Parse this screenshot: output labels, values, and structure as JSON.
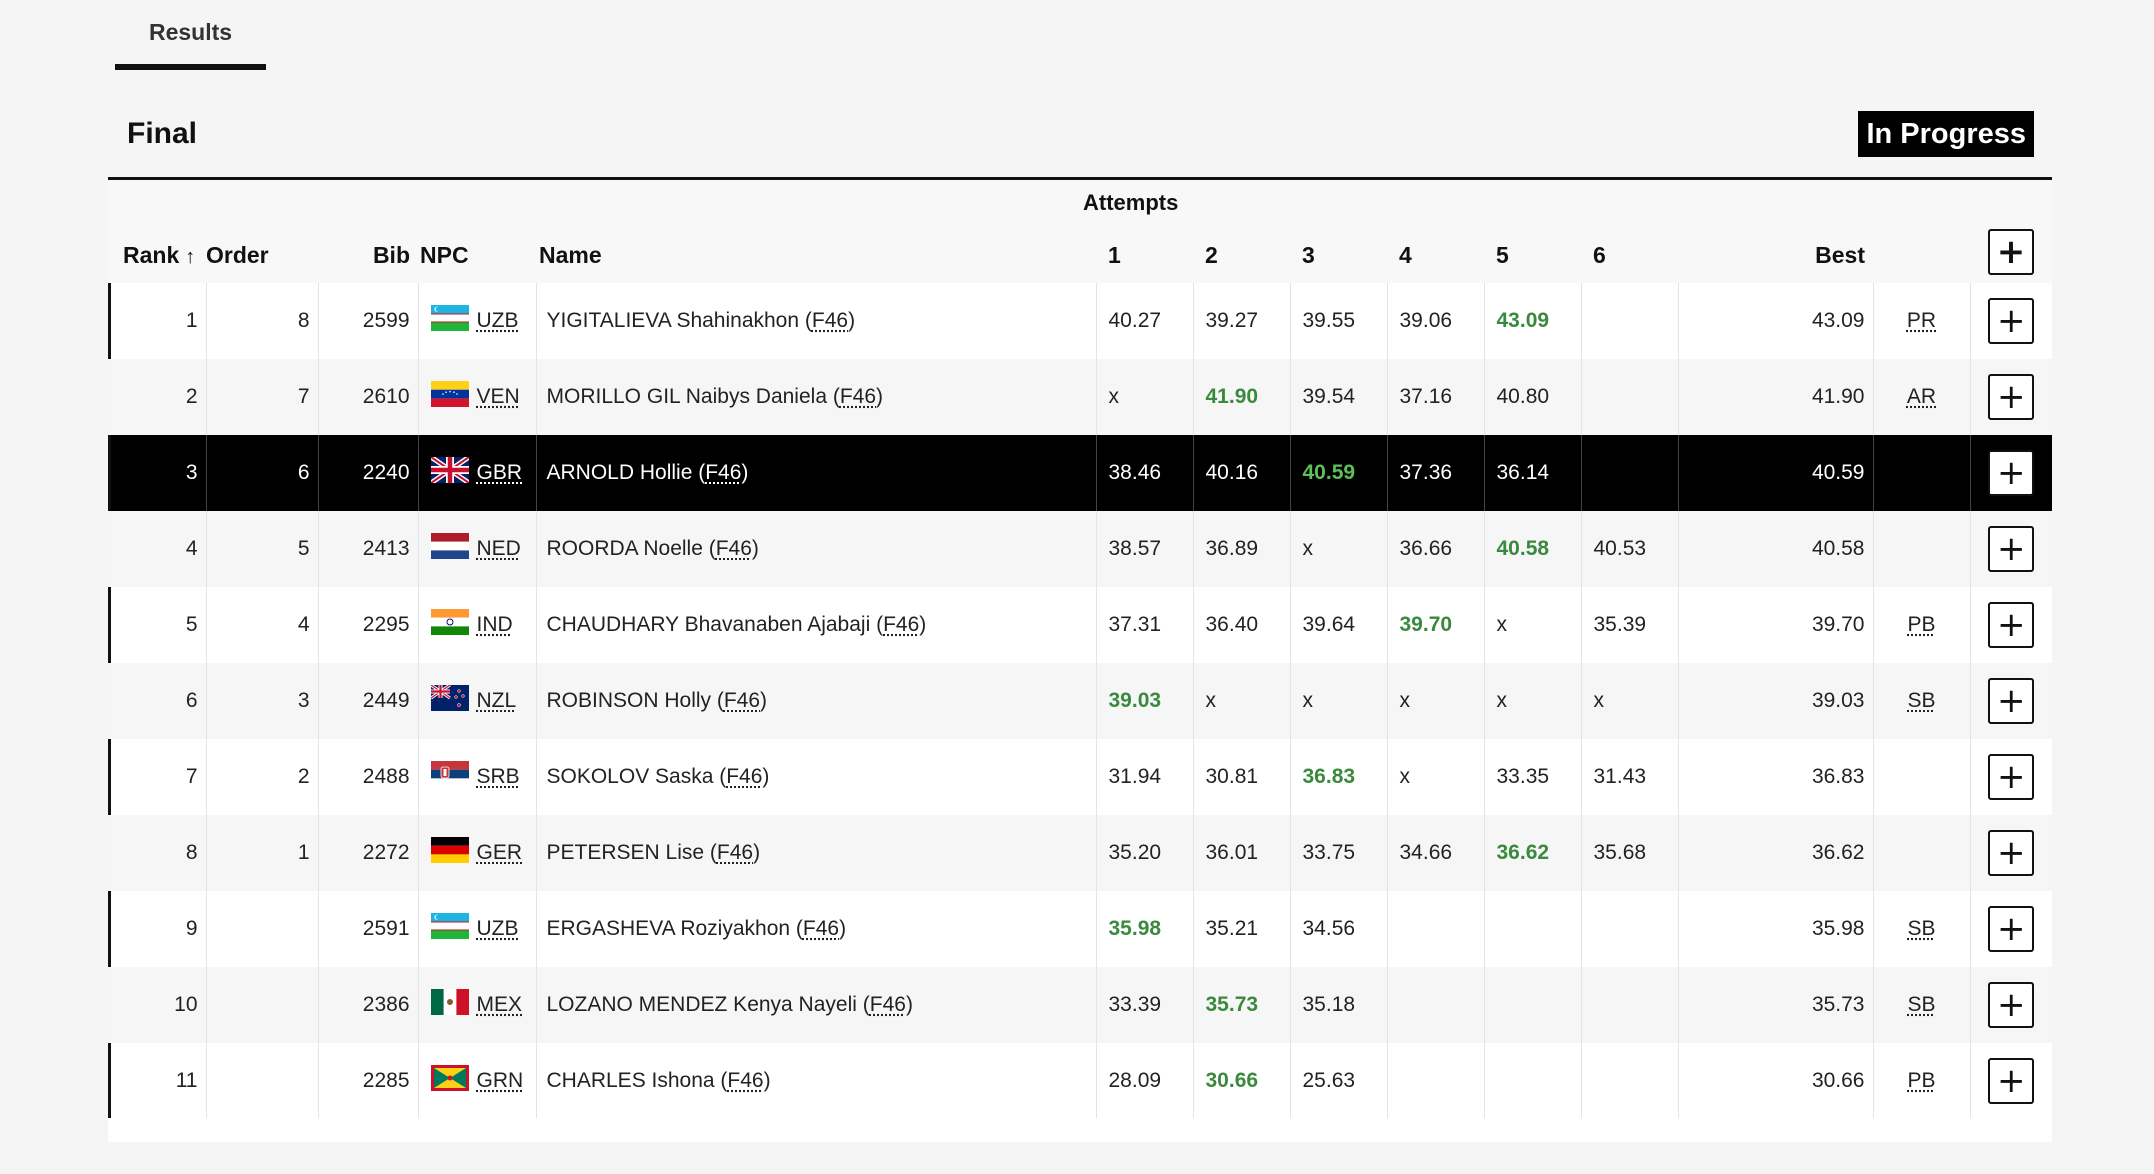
{
  "tabs": [
    {
      "label": "Results"
    }
  ],
  "section": {
    "title": "Final",
    "status": "In Progress"
  },
  "table": {
    "attempts_group_label": "Attempts",
    "columns": {
      "rank": "Rank",
      "order": "Order",
      "bib": "Bib",
      "npc": "NPC",
      "name": "Name",
      "a1": "1",
      "a2": "2",
      "a3": "3",
      "a4": "4",
      "a5": "5",
      "a6": "6",
      "best": "Best",
      "expand": "+"
    },
    "rows": [
      {
        "rank": "1",
        "order": "8",
        "bib": "2599",
        "npc": "UZB",
        "flag": "uzbekistan-flag-icon",
        "name": "YIGITALIEVA Shahinakhon",
        "class": "F46",
        "attempts": [
          "40.27",
          "39.27",
          "39.55",
          "39.06",
          "43.09",
          ""
        ],
        "best_index": 4,
        "best": "43.09",
        "record": "PR"
      },
      {
        "rank": "2",
        "order": "7",
        "bib": "2610",
        "npc": "VEN",
        "flag": "venezuela-flag-icon",
        "name": "MORILLO GIL Naibys Daniela",
        "class": "F46",
        "attempts": [
          "x",
          "41.90",
          "39.54",
          "37.16",
          "40.80",
          ""
        ],
        "best_index": 1,
        "best": "41.90",
        "record": "AR"
      },
      {
        "rank": "3",
        "order": "6",
        "bib": "2240",
        "npc": "GBR",
        "flag": "great-britain-flag-icon",
        "name": "ARNOLD Hollie",
        "class": "F46",
        "attempts": [
          "38.46",
          "40.16",
          "40.59",
          "37.36",
          "36.14",
          ""
        ],
        "best_index": 2,
        "best": "40.59",
        "record": ""
      },
      {
        "rank": "4",
        "order": "5",
        "bib": "2413",
        "npc": "NED",
        "flag": "netherlands-flag-icon",
        "name": "ROORDA Noelle",
        "class": "F46",
        "attempts": [
          "38.57",
          "36.89",
          "x",
          "36.66",
          "40.58",
          "40.53"
        ],
        "best_index": 4,
        "best": "40.58",
        "record": ""
      },
      {
        "rank": "5",
        "order": "4",
        "bib": "2295",
        "npc": "IND",
        "flag": "india-flag-icon",
        "name": "CHAUDHARY Bhavanaben Ajabaji",
        "class": "F46",
        "attempts": [
          "37.31",
          "36.40",
          "39.64",
          "39.70",
          "x",
          "35.39"
        ],
        "best_index": 3,
        "best": "39.70",
        "record": "PB"
      },
      {
        "rank": "6",
        "order": "3",
        "bib": "2449",
        "npc": "NZL",
        "flag": "new-zealand-flag-icon",
        "name": "ROBINSON Holly",
        "class": "F46",
        "attempts": [
          "39.03",
          "x",
          "x",
          "x",
          "x",
          "x"
        ],
        "best_index": 0,
        "best": "39.03",
        "record": "SB"
      },
      {
        "rank": "7",
        "order": "2",
        "bib": "2488",
        "npc": "SRB",
        "flag": "serbia-flag-icon",
        "name": "SOKOLOV Saska",
        "class": "F46",
        "attempts": [
          "31.94",
          "30.81",
          "36.83",
          "x",
          "33.35",
          "31.43"
        ],
        "best_index": 2,
        "best": "36.83",
        "record": ""
      },
      {
        "rank": "8",
        "order": "1",
        "bib": "2272",
        "npc": "GER",
        "flag": "germany-flag-icon",
        "name": "PETERSEN Lise",
        "class": "F46",
        "attempts": [
          "35.20",
          "36.01",
          "33.75",
          "34.66",
          "36.62",
          "35.68"
        ],
        "best_index": 4,
        "best": "36.62",
        "record": ""
      },
      {
        "rank": "9",
        "order": "",
        "bib": "2591",
        "npc": "UZB",
        "flag": "uzbekistan-flag-icon",
        "name": "ERGASHEVA Roziyakhon",
        "class": "F46",
        "attempts": [
          "35.98",
          "35.21",
          "34.56",
          "",
          "",
          ""
        ],
        "best_index": 0,
        "best": "35.98",
        "record": "SB"
      },
      {
        "rank": "10",
        "order": "",
        "bib": "2386",
        "npc": "MEX",
        "flag": "mexico-flag-icon",
        "name": "LOZANO MENDEZ Kenya Nayeli",
        "class": "F46",
        "attempts": [
          "33.39",
          "35.73",
          "35.18",
          "",
          "",
          ""
        ],
        "best_index": 1,
        "best": "35.73",
        "record": "SB"
      },
      {
        "rank": "11",
        "order": "",
        "bib": "2285",
        "npc": "GRN",
        "flag": "grenada-flag-icon",
        "name": "CHARLES Ishona",
        "class": "F46",
        "attempts": [
          "28.09",
          "30.66",
          "25.63",
          "",
          "",
          ""
        ],
        "best_index": 1,
        "best": "30.66",
        "record": "PB"
      }
    ],
    "highlight_row": 2,
    "colors": {
      "best_attempt": "#3a8a3e",
      "highlight_bg": "#000000"
    }
  }
}
